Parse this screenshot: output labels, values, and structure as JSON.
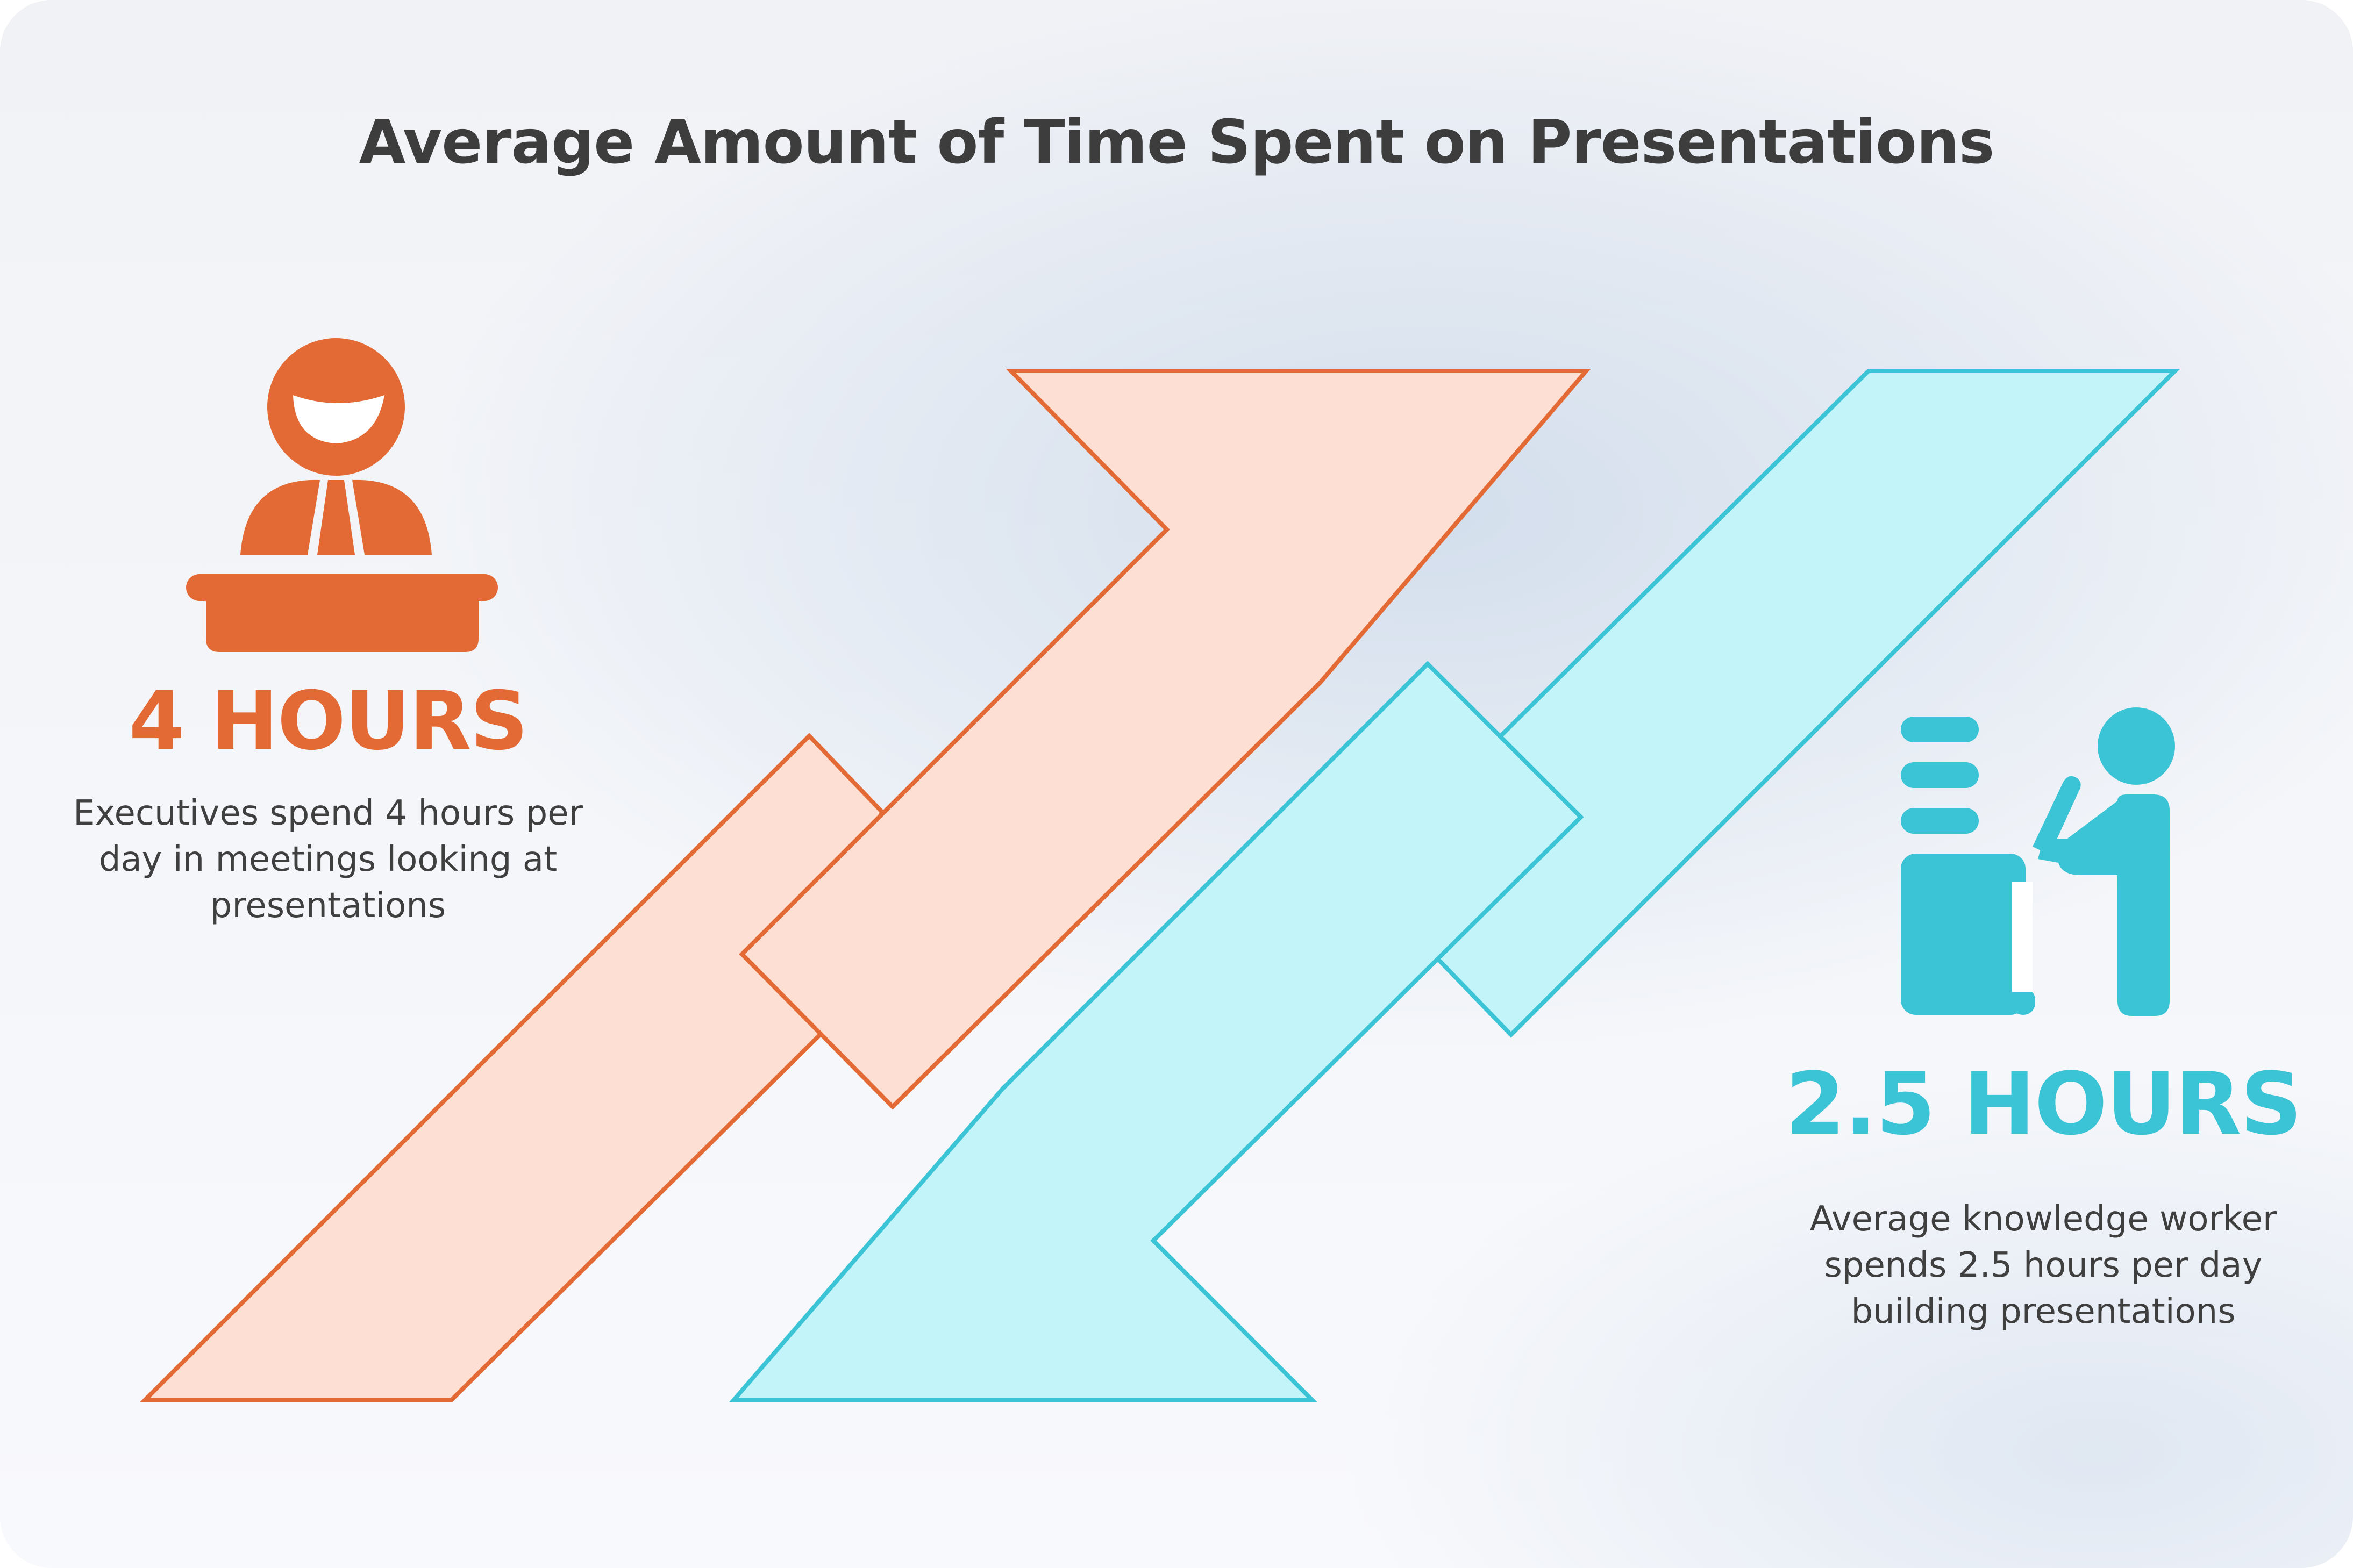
{
  "title": "Average Amount of Time Spent on Presentations",
  "executives": {
    "stat": "4 HOURS",
    "description": "Executives spend 4 hours per day in meetings looking at presentations",
    "icon": "presenter-at-podium-icon",
    "color": "#e46a35",
    "fill_color": "#fde0d3"
  },
  "knowledge_worker": {
    "stat": "2.5 HOURS",
    "description": "Average knowledge worker spends 2.5 hours per day building presentations",
    "icon": "person-at-desk-writing-icon",
    "color": "#3bc4d6",
    "fill_color": "#c3f4f9"
  }
}
